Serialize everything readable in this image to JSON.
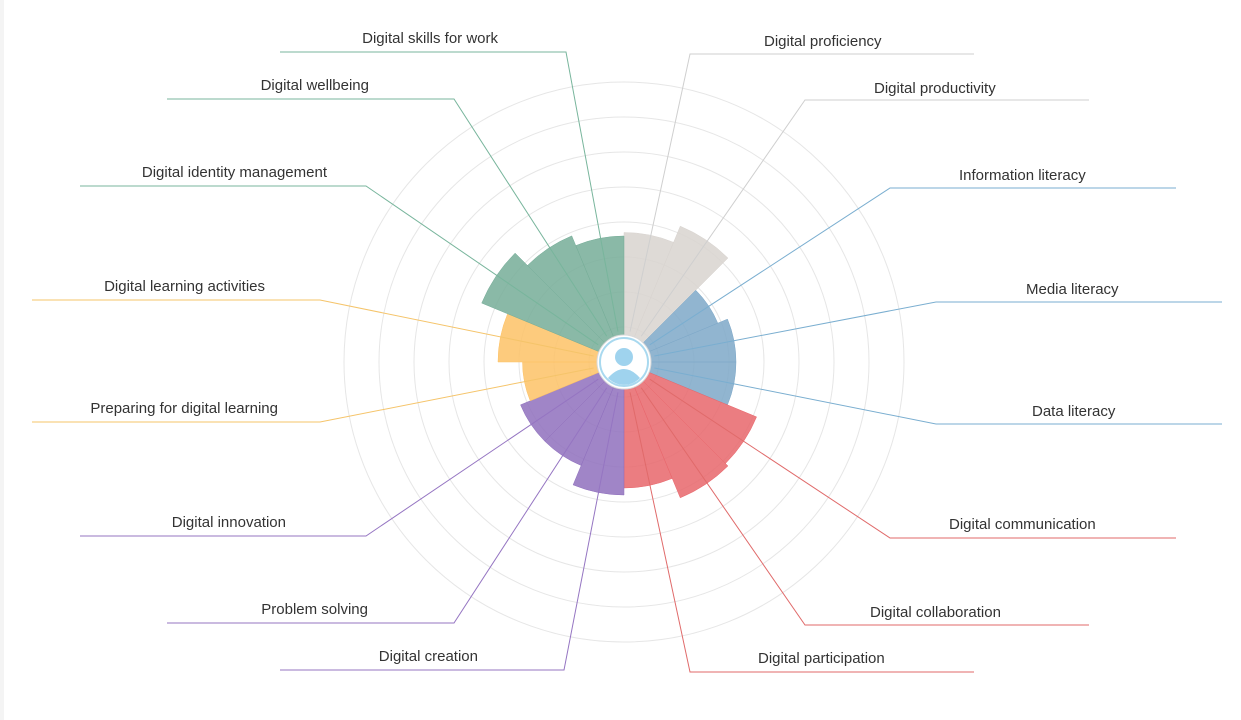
{
  "chart_data": {
    "type": "polar-area",
    "title": "",
    "center_icon": "user-avatar-icon",
    "grid": true,
    "grid_rings": 8,
    "max_value": 8,
    "segments": [
      {
        "label": "Digital proficiency",
        "value": 3.7,
        "group": "proficiency"
      },
      {
        "label": "Digital productivity",
        "value": 4.2,
        "group": "proficiency"
      },
      {
        "label": "Information literacy",
        "value": 2.9,
        "group": "literacy"
      },
      {
        "label": "Media literacy",
        "value": 3.2,
        "group": "literacy"
      },
      {
        "label": "Data literacy",
        "value": 3.2,
        "group": "literacy"
      },
      {
        "label": "Digital communication",
        "value": 4.1,
        "group": "communication"
      },
      {
        "label": "Digital collaboration",
        "value": 4.2,
        "group": "communication"
      },
      {
        "label": "Digital participation",
        "value": 3.6,
        "group": "communication"
      },
      {
        "label": "Digital creation",
        "value": 3.8,
        "group": "creation"
      },
      {
        "label": "Problem solving",
        "value": 3.2,
        "group": "creation"
      },
      {
        "label": "Digital innovation",
        "value": 3.2,
        "group": "creation"
      },
      {
        "label": "Preparing for digital learning",
        "value": 2.9,
        "group": "learning"
      },
      {
        "label": "Digital learning activities",
        "value": 3.6,
        "group": "learning"
      },
      {
        "label": "Digital identity management",
        "value": 4.4,
        "group": "identity"
      },
      {
        "label": "Digital wellbeing",
        "value": 3.9,
        "group": "identity"
      },
      {
        "label": "Digital skills for work",
        "value": 3.6,
        "group": "identity"
      }
    ],
    "group_colors": {
      "proficiency": {
        "fill": "#d8d3cf",
        "line": "#cfcfcf"
      },
      "literacy": {
        "fill": "#7ea8c8",
        "line": "#7aaed0"
      },
      "communication": {
        "fill": "#e8666b",
        "line": "#e06a6a"
      },
      "creation": {
        "fill": "#8f70bd",
        "line": "#9575c2"
      },
      "learning": {
        "fill": "#fdc266",
        "line": "#f5c46a"
      },
      "identity": {
        "fill": "#76ad98",
        "line": "#78b59c"
      }
    }
  }
}
